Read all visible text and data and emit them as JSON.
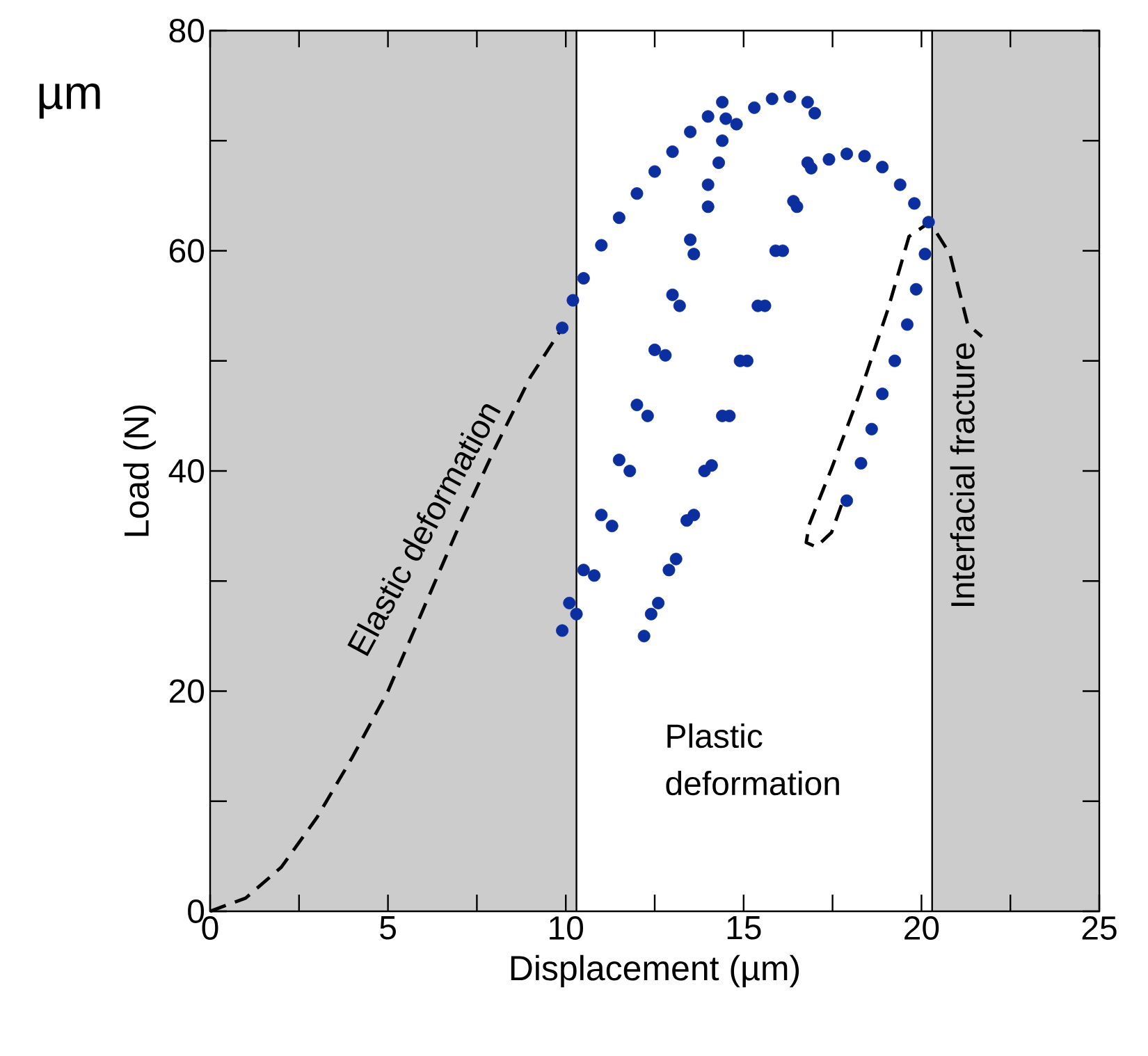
{
  "chart_data": {
    "type": "line",
    "xlabel": "Displacement (µm)",
    "ylabel": "Load (N)",
    "xlim": [
      0,
      25
    ],
    "ylim": [
      0,
      80
    ],
    "xticks": [
      0,
      {
        "value": 2.5,
        "label": null
      },
      5,
      {
        "value": 7.5,
        "label": null
      },
      10,
      {
        "value": 12.5,
        "label": null
      },
      15,
      {
        "value": 17.5,
        "label": null
      },
      20,
      {
        "value": 22.5,
        "label": null
      },
      25
    ],
    "yticks": [
      0,
      {
        "value": 10,
        "label": null
      },
      20,
      {
        "value": 30,
        "label": null
      },
      40,
      {
        "value": 50,
        "label": null
      },
      60,
      {
        "value": 70,
        "label": null
      },
      80
    ],
    "bands": [
      {
        "axis": "x",
        "from": 0,
        "to": 10.3,
        "color": "#cccccc"
      },
      {
        "axis": "x",
        "from": 20.3,
        "to": 25,
        "color": "#cccccc"
      }
    ],
    "ref_lines": [
      {
        "axis": "x",
        "value": 10.3,
        "color": "#000000"
      },
      {
        "axis": "x",
        "value": 20.3,
        "color": "#000000"
      }
    ],
    "annotations": [
      "Elastic deformation",
      "Plastic deformation",
      "Interfacial fracture",
      "µm"
    ],
    "series": [
      {
        "line_style": "dashed",
        "marker": "none",
        "color": "#000000",
        "x": [
          0,
          1,
          2,
          3,
          4,
          5,
          6,
          7,
          8,
          9,
          9.9
        ],
        "values": [
          0,
          1.2,
          4,
          8.5,
          14,
          20,
          27.5,
          35,
          42,
          48.5,
          53
        ]
      },
      {
        "type": "scatter",
        "marker": "circle",
        "color": "#0b2f9f",
        "x": [
          9.9,
          10.2,
          10.5,
          11,
          11.5,
          12,
          12.5,
          13,
          13.5,
          14,
          14.4,
          14.5,
          14.3,
          14,
          13.6,
          13.2,
          12.8,
          12.3,
          11.8,
          11.3,
          10.8,
          10.3,
          9.9,
          10.1,
          10.5,
          11,
          11.5,
          12,
          12.5,
          13,
          13.5,
          14,
          14.4,
          14.8,
          15.3,
          15.8,
          16.3,
          16.8,
          17,
          16.8,
          16.5,
          16.1,
          15.6,
          15.1,
          14.6,
          14.1,
          13.6,
          13.1,
          12.6,
          12.2,
          12.4,
          12.9,
          13.4,
          13.9,
          14.4,
          14.9,
          15.4,
          15.9,
          16.4,
          16.9,
          17.4,
          17.9,
          18.4,
          18.9,
          19.4,
          19.8,
          20.2,
          20.1,
          19.85,
          19.6,
          19.25,
          18.9,
          18.6,
          18.3,
          17.9
        ],
        "values": [
          53,
          55.5,
          57.5,
          60.5,
          63,
          65.2,
          67.2,
          69,
          70.8,
          72.2,
          73.5,
          72,
          68,
          64,
          59.7,
          55,
          50.5,
          45,
          40,
          35,
          30.5,
          27,
          25.5,
          28,
          31,
          36,
          41,
          46,
          51,
          56,
          61,
          66,
          70,
          71.5,
          73,
          73.8,
          74,
          73.5,
          72.5,
          68,
          64,
          60,
          55,
          50,
          45,
          40.5,
          36,
          32,
          28,
          25,
          27,
          31,
          35.5,
          40,
          45,
          50,
          55,
          60,
          64.5,
          67.5,
          68.3,
          68.8,
          68.6,
          67.6,
          66,
          64.3,
          62.6,
          59.7,
          56.5,
          53.3,
          50,
          47,
          43.8,
          40.7,
          37.3
        ]
      },
      {
        "line_style": "dashed",
        "marker": "none",
        "color": "#000000",
        "x": [
          17.75,
          17.47,
          17.04,
          16.76,
          16.84,
          17.47,
          18.26,
          19.05,
          19.65,
          20.24,
          20.8,
          21.3,
          21.7
        ],
        "values": [
          36.9,
          34.4,
          33.1,
          33.5,
          35.1,
          40.2,
          47,
          54.6,
          61.3,
          62.6,
          59.7,
          53.3,
          52.2
        ]
      }
    ]
  }
}
